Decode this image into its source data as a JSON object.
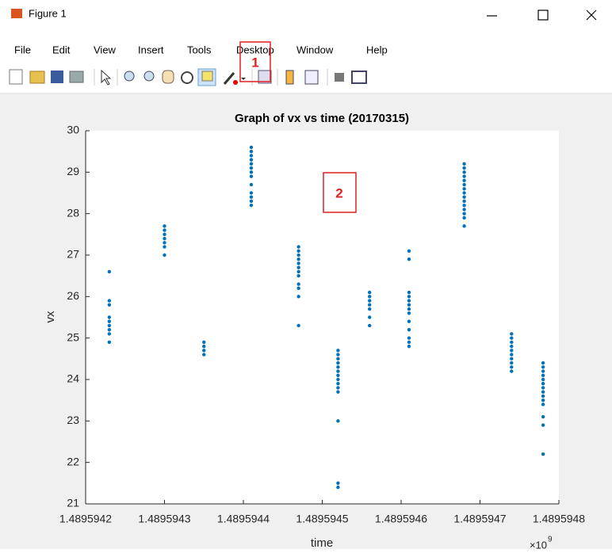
{
  "window": {
    "title": "Figure 1"
  },
  "menu": [
    "File",
    "Edit",
    "View",
    "Insert",
    "Tools",
    "Desktop",
    "Window",
    "Help"
  ],
  "annotations": [
    "1",
    "2"
  ],
  "chart_data": {
    "type": "scatter",
    "title": "Graph of vx vs time (20170315)",
    "xlabel": "time",
    "ylabel": "vx",
    "x_exponent": {
      "base": "×10",
      "power": "9"
    },
    "color": "#0072bd",
    "xlim": [
      1.4895942,
      1.4895948
    ],
    "xticks": [
      1.4895942,
      1.4895943,
      1.4895944,
      1.4895945,
      1.4895946,
      1.4895947,
      1.4895948
    ],
    "ylim": [
      21,
      30
    ],
    "yticks": [
      21,
      22,
      23,
      24,
      25,
      26,
      27,
      28,
      29,
      30
    ],
    "x": [
      1.48959423,
      1.48959423,
      1.48959423,
      1.48959423,
      1.48959423,
      1.48959423,
      1.48959423,
      1.48959423,
      1.48959423,
      1.4895943,
      1.4895943,
      1.4895943,
      1.4895943,
      1.4895943,
      1.4895943,
      1.4895943,
      1.48959435,
      1.48959435,
      1.48959435,
      1.48959435,
      1.48959441,
      1.48959441,
      1.48959441,
      1.48959441,
      1.48959441,
      1.48959441,
      1.48959441,
      1.48959441,
      1.48959441,
      1.48959441,
      1.48959441,
      1.48959441,
      1.48959441,
      1.48959447,
      1.48959447,
      1.48959447,
      1.48959447,
      1.48959447,
      1.48959447,
      1.48959447,
      1.48959447,
      1.48959447,
      1.48959447,
      1.48959447,
      1.48959447,
      1.48959452,
      1.48959452,
      1.48959452,
      1.48959452,
      1.48959452,
      1.48959452,
      1.48959452,
      1.48959452,
      1.48959452,
      1.48959452,
      1.48959452,
      1.48959452,
      1.48959452,
      1.48959452,
      1.48959456,
      1.48959456,
      1.48959456,
      1.48959456,
      1.48959456,
      1.48959456,
      1.48959456,
      1.48959461,
      1.48959461,
      1.48959461,
      1.48959461,
      1.48959461,
      1.48959461,
      1.48959461,
      1.48959461,
      1.48959461,
      1.48959461,
      1.48959461,
      1.48959461,
      1.48959461,
      1.48959468,
      1.48959468,
      1.48959468,
      1.48959468,
      1.48959468,
      1.48959468,
      1.48959468,
      1.48959468,
      1.48959468,
      1.48959468,
      1.48959468,
      1.48959468,
      1.48959468,
      1.48959468,
      1.48959468,
      1.48959474,
      1.48959474,
      1.48959474,
      1.48959474,
      1.48959474,
      1.48959474,
      1.48959474,
      1.48959474,
      1.48959474,
      1.48959474,
      1.48959478,
      1.48959478,
      1.48959478,
      1.48959478,
      1.48959478,
      1.48959478,
      1.48959478,
      1.48959478,
      1.48959478,
      1.48959478,
      1.48959478,
      1.48959478,
      1.48959478,
      1.48959478
    ],
    "values": [
      26.6,
      25.9,
      25.8,
      25.5,
      25.4,
      25.3,
      25.2,
      25.1,
      24.9,
      27.0,
      27.2,
      27.3,
      27.4,
      27.5,
      27.6,
      27.7,
      24.6,
      24.7,
      24.8,
      24.9,
      29.6,
      29.5,
      29.4,
      29.3,
      29.2,
      29.1,
      29.0,
      28.9,
      28.7,
      28.5,
      28.4,
      28.3,
      28.2,
      27.2,
      27.1,
      27.0,
      26.9,
      26.8,
      26.7,
      26.6,
      26.5,
      26.3,
      26.2,
      26.0,
      25.3,
      24.7,
      24.6,
      24.5,
      24.4,
      24.3,
      24.2,
      24.1,
      24.0,
      23.9,
      23.8,
      23.7,
      23.0,
      21.5,
      21.4,
      26.1,
      26.0,
      25.9,
      25.8,
      25.7,
      25.5,
      25.3,
      27.1,
      26.9,
      26.1,
      26.0,
      25.9,
      25.8,
      25.7,
      25.6,
      25.4,
      25.2,
      25.0,
      24.9,
      24.8,
      29.2,
      29.1,
      29.0,
      28.9,
      28.8,
      28.7,
      28.6,
      28.5,
      28.4,
      28.3,
      28.2,
      28.1,
      28.0,
      27.9,
      27.7,
      25.1,
      25.0,
      24.9,
      24.8,
      24.7,
      24.6,
      24.5,
      24.4,
      24.3,
      24.2,
      24.4,
      24.3,
      24.2,
      24.1,
      24.0,
      23.9,
      23.8,
      23.7,
      23.6,
      23.5,
      23.4,
      23.1,
      22.9,
      22.2
    ]
  }
}
